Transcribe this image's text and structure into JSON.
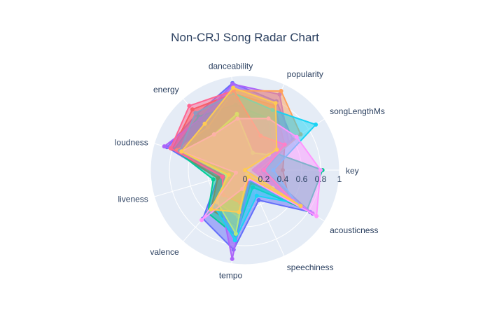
{
  "chart_data": {
    "type": "radar",
    "title": "Non-CRJ Song Radar Chart",
    "axes": [
      "key",
      "songLengthMs",
      "popularity",
      "danceability",
      "energy",
      "loudness",
      "liveness",
      "valence",
      "tempo",
      "speechiness",
      "acousticness"
    ],
    "radial_range": [
      0,
      1
    ],
    "radial_ticks": [
      "0",
      "0.2",
      "0.4",
      "0.6",
      "0.8",
      "1"
    ],
    "grid": true,
    "colors": {
      "polar_bg": "#e5ecf6",
      "grid": "#ffffff",
      "text": "#2a3f5f"
    },
    "series": [
      {
        "color": "#636efa",
        "values": [
          0.2,
          0.6,
          0.8,
          0.93,
          0.78,
          0.86,
          0.3,
          0.68,
          0.85,
          0.35,
          0.82
        ]
      },
      {
        "color": "#ef553b",
        "values": [
          0.4,
          0.5,
          0.75,
          0.82,
          0.85,
          0.8,
          0.3,
          0.55,
          0.6,
          0.15,
          0.55
        ]
      },
      {
        "color": "#00cc96",
        "values": [
          0.82,
          0.35,
          0.6,
          0.7,
          0.75,
          0.78,
          0.35,
          0.6,
          0.7,
          0.2,
          0.78
        ]
      },
      {
        "color": "#ab63fa",
        "values": [
          0.1,
          0.55,
          0.88,
          0.92,
          0.72,
          0.89,
          0.15,
          0.4,
          0.95,
          0.12,
          0.85
        ]
      },
      {
        "color": "#ffa15a",
        "values": [
          0.15,
          0.7,
          0.92,
          0.85,
          0.6,
          0.75,
          0.2,
          0.45,
          0.5,
          0.1,
          0.3
        ]
      },
      {
        "color": "#19d3f3",
        "values": [
          0.3,
          0.89,
          0.7,
          0.82,
          0.8,
          0.72,
          0.2,
          0.5,
          0.75,
          0.3,
          0.65
        ]
      },
      {
        "color": "#ff6692",
        "values": [
          0.2,
          0.5,
          0.4,
          0.85,
          0.9,
          0.82,
          0.25,
          0.35,
          0.35,
          0.1,
          0.6
        ]
      },
      {
        "color": "#b6e880",
        "values": [
          0.05,
          0.3,
          0.2,
          0.6,
          0.5,
          0.7,
          0.2,
          0.45,
          0.68,
          0.05,
          0.35
        ]
      },
      {
        "color": "#ff97ff",
        "values": [
          0.8,
          0.65,
          0.6,
          0.55,
          0.5,
          0.7,
          0.1,
          0.7,
          0.2,
          0.1,
          0.9
        ]
      },
      {
        "color": "#fecb52",
        "values": [
          0.0,
          0.4,
          0.78,
          0.88,
          0.65,
          0.7,
          0.18,
          0.55,
          0.45,
          0.08,
          0.7
        ]
      }
    ]
  }
}
